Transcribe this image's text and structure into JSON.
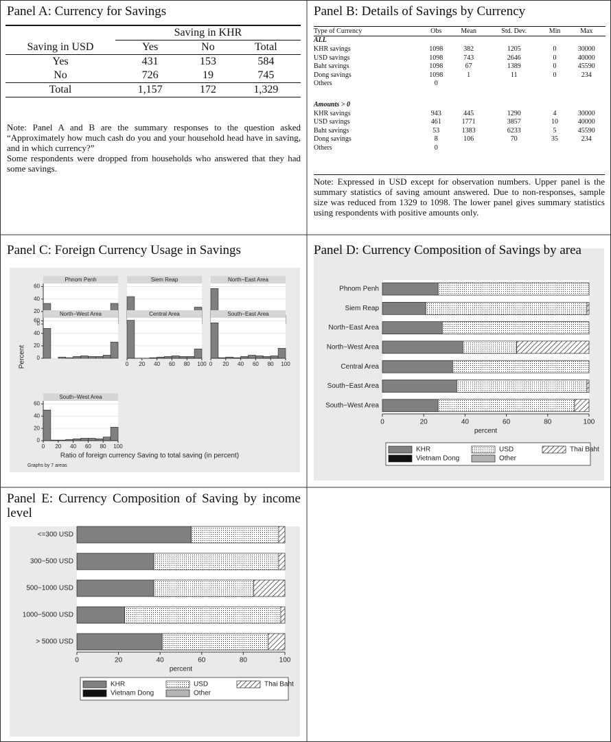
{
  "panel_a": {
    "title": "Panel A: Currency for Savings",
    "header_group": "Saving in KHR",
    "columns": [
      "Saving in USD",
      "Yes",
      "No",
      "Total"
    ],
    "rows": [
      [
        "Yes",
        "431",
        "153",
        "584"
      ],
      [
        "No",
        "726",
        "19",
        "745"
      ],
      [
        "Total",
        "1,157",
        "172",
        "1,329"
      ]
    ],
    "note": [
      "Note: Panel A and B are the summary responses to the question asked “Approximately how much cash do you and your household head have in saving, and in which currency?”",
      "Some respondents were dropped from households who answered that they had some savings."
    ]
  },
  "panel_b": {
    "title": "Panel B: Details of Savings by Currency",
    "columns": [
      "Type of Currency",
      "Obs",
      "Mean",
      "Std. Dev.",
      "Min",
      "Max"
    ],
    "sections": [
      {
        "label": "ALL",
        "rows": [
          [
            "KHR savings",
            "1098",
            "382",
            "1205",
            "0",
            "30000"
          ],
          [
            "USD savings",
            "1098",
            "743",
            "2646",
            "0",
            "40000"
          ],
          [
            "Baht savings",
            "1098",
            "67",
            "1389",
            "0",
            "45590"
          ],
          [
            "Dong savings",
            "1098",
            "1",
            "11",
            "0",
            "234"
          ],
          [
            "Others",
            "0"
          ]
        ]
      },
      {
        "label": "Amounts > 0",
        "rows": [
          [
            "KHR savings",
            "943",
            "445",
            "1290",
            "4",
            "30000"
          ],
          [
            "USD savings",
            "461",
            "1771",
            "3857",
            "10",
            "40000"
          ],
          [
            "Baht savings",
            "53",
            "1383",
            "6233",
            "5",
            "45590"
          ],
          [
            "Dong savings",
            "8",
            "106",
            "70",
            "35",
            "234"
          ],
          [
            "Others",
            "0"
          ]
        ]
      }
    ],
    "note": "Note: Expressed in USD except for observation numbers. Upper panel is the summary statistics of saving amount answered. Due to non-responses, sample size was reduced from 1329 to 1098. The lower panel gives summary statistics using respondents with positive amounts only."
  },
  "chart_data": [
    {
      "type": "histogram",
      "title": "Panel C: Foreign Currency Usage in Savings",
      "xlabel": "Ratio of foreign currency Saving to total saving (in percent)",
      "ylabel": "Percent",
      "note": "Graphs by 7 areas",
      "color": "#808080",
      "bins": [
        0,
        10,
        20,
        30,
        40,
        50,
        60,
        70,
        80,
        90,
        100
      ],
      "panels": [
        {
          "name": "Phnom Penh",
          "values": [
            33,
            0,
            4,
            3,
            3,
            5,
            0,
            8,
            11,
            33
          ]
        },
        {
          "name": "Siem Reap",
          "values": [
            44,
            3,
            1,
            0,
            0,
            7,
            5,
            4,
            8,
            27
          ]
        },
        {
          "name": "North−East Area",
          "values": [
            57,
            1,
            1,
            2,
            2,
            3,
            2,
            4,
            5,
            14
          ]
        },
        {
          "name": "North−West Area",
          "values": [
            48,
            0,
            2,
            1,
            3,
            4,
            3,
            3,
            5,
            26
          ]
        },
        {
          "name": "Central Area",
          "values": [
            61,
            0,
            0,
            1,
            2,
            3,
            4,
            3,
            3,
            15
          ]
        },
        {
          "name": "South−East Area",
          "values": [
            57,
            1,
            2,
            1,
            3,
            5,
            4,
            3,
            4,
            16
          ]
        },
        {
          "name": "South−West Area",
          "values": [
            50,
            1,
            1,
            2,
            3,
            4,
            4,
            3,
            6,
            22
          ]
        }
      ],
      "xlim": [
        0,
        100
      ],
      "xticks": [
        0,
        20,
        40,
        60,
        80,
        100
      ],
      "ylim": [
        0,
        65
      ],
      "yticks": [
        0,
        20,
        40,
        60
      ]
    },
    {
      "type": "stacked_hbar",
      "title": "Panel D: Currency Composition of Savings by area",
      "xlabel": "percent",
      "categories": [
        "Phnom Penh",
        "Siem Reap",
        "North−East Area",
        "North−West Area",
        "Central Area",
        "South−East Area",
        "South−West Area"
      ],
      "series": [
        {
          "name": "KHR",
          "color": "#808080",
          "values": [
            27,
            21,
            29,
            39,
            34,
            36,
            27
          ]
        },
        {
          "name": "USD",
          "color": "#ffffff",
          "pattern": "dots",
          "values": [
            73,
            78,
            71,
            26,
            66,
            63,
            66
          ]
        },
        {
          "name": "Thai Baht",
          "color": "#ffffff",
          "pattern": "hatch",
          "values": [
            0,
            1,
            0,
            35,
            0,
            1,
            7
          ]
        },
        {
          "name": "Vietnam Dong",
          "color": "#111111",
          "values": [
            0,
            0,
            0,
            0,
            0,
            0,
            0
          ]
        },
        {
          "name": "Other",
          "color": "#b4b4b4",
          "values": [
            0,
            0,
            0,
            0,
            0,
            0,
            0
          ]
        }
      ],
      "xlim": [
        0,
        100
      ],
      "xticks": [
        0,
        20,
        40,
        60,
        80,
        100
      ]
    },
    {
      "type": "stacked_hbar",
      "title": "Panel E: Currency Composition of Saving by income level",
      "xlabel": "percent",
      "categories": [
        "<=300 USD",
        "300−500 USD",
        "500−1000 USD",
        "1000−5000 USD",
        "> 5000 USD"
      ],
      "series": [
        {
          "name": "KHR",
          "color": "#808080",
          "values": [
            55,
            37,
            37,
            23,
            41
          ]
        },
        {
          "name": "USD",
          "color": "#ffffff",
          "pattern": "dots",
          "values": [
            42,
            60,
            48,
            75,
            51
          ]
        },
        {
          "name": "Thai Baht",
          "color": "#ffffff",
          "pattern": "hatch",
          "values": [
            3,
            3,
            15,
            2,
            8
          ]
        },
        {
          "name": "Vietnam Dong",
          "color": "#111111",
          "values": [
            0,
            0,
            0,
            0,
            0
          ]
        },
        {
          "name": "Other",
          "color": "#b4b4b4",
          "values": [
            0,
            0,
            0,
            0,
            0
          ]
        }
      ],
      "xlim": [
        0,
        100
      ],
      "xticks": [
        0,
        20,
        40,
        60,
        80,
        100
      ]
    }
  ]
}
